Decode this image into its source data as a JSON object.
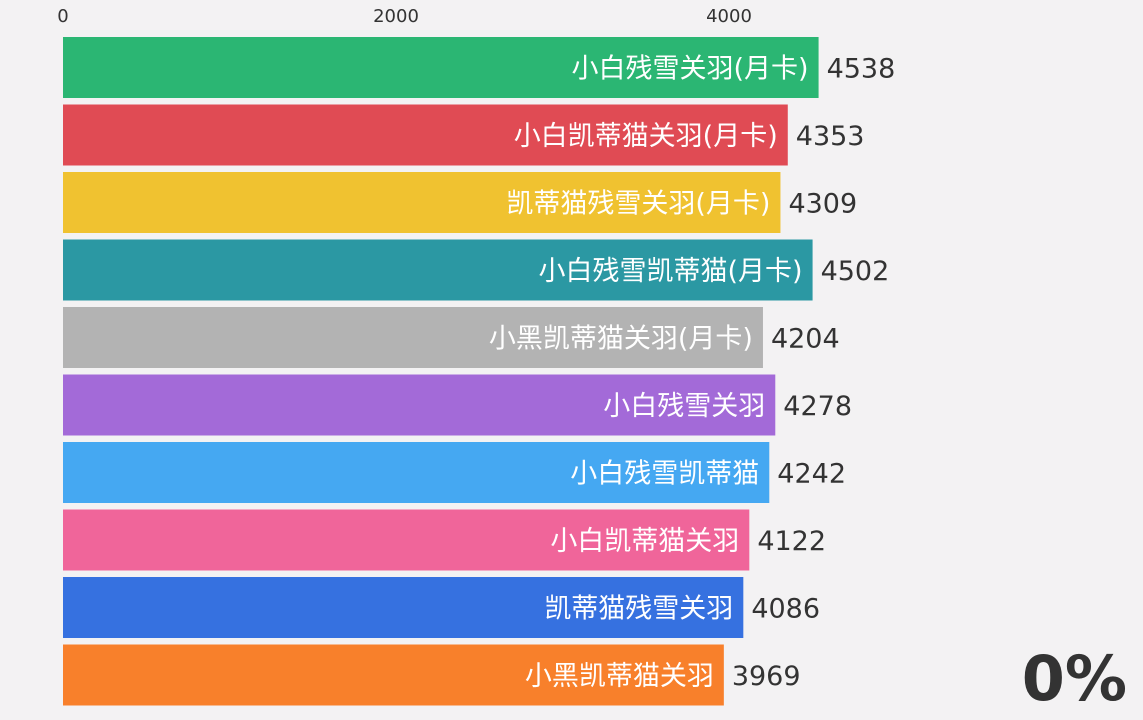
{
  "chart_data": {
    "type": "bar",
    "orientation": "horizontal",
    "categories": [
      "小白残雪关羽(月卡)",
      "小白凯蒂猫关羽(月卡)",
      "凯蒂猫残雪关羽(月卡)",
      "小白残雪凯蒂猫(月卡)",
      "小黑凯蒂猫关羽(月卡)",
      "小白残雪关羽",
      "小白残雪凯蒂猫",
      "小白凯蒂猫关羽",
      "凯蒂猫残雪关羽",
      "小黑凯蒂猫关羽"
    ],
    "values": [
      4538,
      4353,
      4309,
      4502,
      4204,
      4278,
      4242,
      4122,
      4086,
      3969
    ],
    "colors": [
      "#2bb673",
      "#e04b54",
      "#f0c230",
      "#2b98a3",
      "#b3b3b3",
      "#a36ad8",
      "#45a8f2",
      "#f0659a",
      "#3671e0",
      "#f8802b"
    ],
    "x_ticks": [
      0,
      2000,
      4000
    ],
    "x_tick_labels": [
      "0",
      "2000",
      "4000"
    ],
    "xlim": [
      0,
      6000
    ],
    "title": "",
    "xlabel": "",
    "ylabel": "",
    "grid": false,
    "legend": "none"
  },
  "progress_label": "0%"
}
